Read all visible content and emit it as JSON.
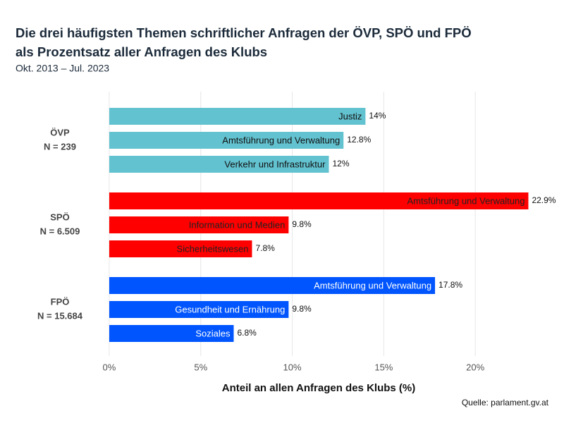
{
  "chart_data": {
    "type": "bar",
    "title": [
      "Die drei häufigsten Themen schriftlicher Anfragen der ÖVP, SPÖ und FPÖ",
      "als Prozentsatz aller Anfragen des Klubs"
    ],
    "subtitle": "Okt. 2013 – Jul. 2023",
    "xlabel": "Anteil an allen Anfragen des Klubs (%)",
    "source": "Quelle: parlament.gv.at",
    "xlim": [
      -1,
      24
    ],
    "xticks": [
      {
        "value": 0,
        "label": "0%"
      },
      {
        "value": 5,
        "label": "5%"
      },
      {
        "value": 10,
        "label": "10%"
      },
      {
        "value": 15,
        "label": "15%"
      },
      {
        "value": 20,
        "label": "20%"
      }
    ],
    "grid": true,
    "series": [
      {
        "name": "ÖVP",
        "n": "N = 239",
        "color": "#63c2d0",
        "label_color": "#111111",
        "categories": [
          "Justiz",
          "Amtsführung und Verwaltung",
          "Verkehr und Infrastruktur"
        ],
        "values": [
          14,
          12.8,
          12
        ],
        "value_labels": [
          "14%",
          "12.8%",
          "12%"
        ]
      },
      {
        "name": "SPÖ",
        "n": "N = 6.509",
        "color": "#ff0000",
        "label_color": "#222222",
        "categories": [
          "Amtsführung und Verwaltung",
          "Information und Medien",
          "Sicherheitswesen"
        ],
        "values": [
          22.9,
          9.8,
          7.8
        ],
        "value_labels": [
          "22.9%",
          "9.8%",
          "7.8%"
        ]
      },
      {
        "name": "FPÖ",
        "n": "N = 15.684",
        "color": "#0055ff",
        "label_color": "#ffffff",
        "categories": [
          "Amtsführung und Verwaltung",
          "Gesundheit und Ernährung",
          "Soziales"
        ],
        "values": [
          17.8,
          9.8,
          6.8
        ],
        "value_labels": [
          "17.8%",
          "9.8%",
          "6.8%"
        ]
      }
    ]
  }
}
